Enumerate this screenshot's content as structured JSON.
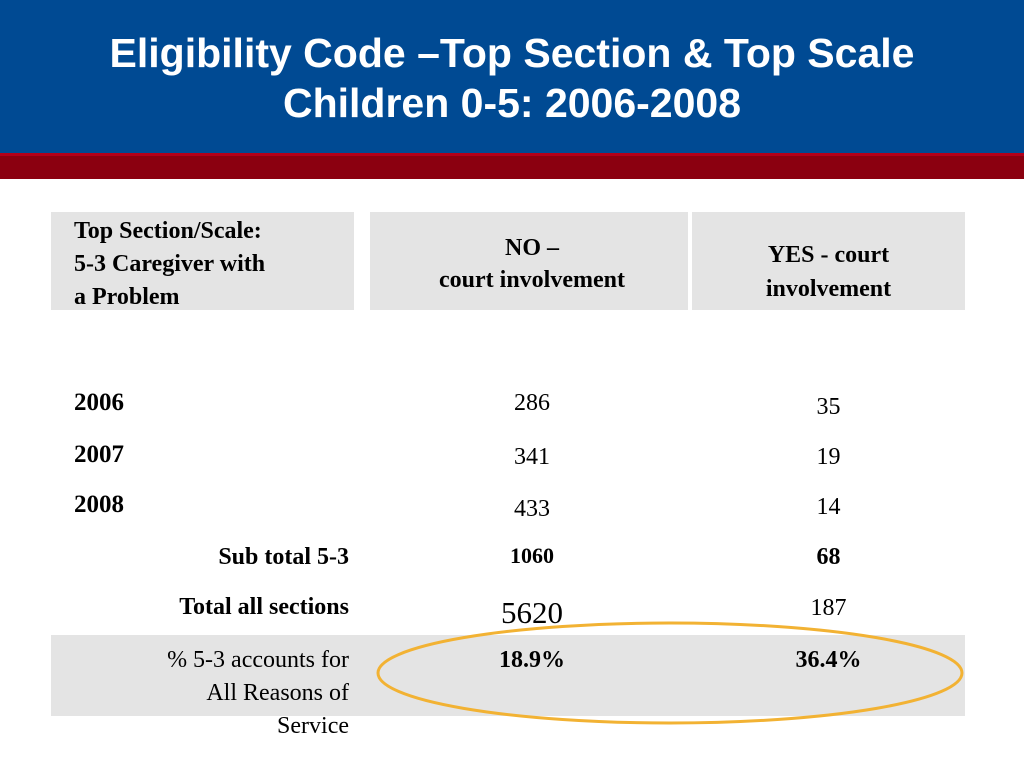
{
  "slide": {
    "title_line1": "Eligibility Code –Top Section & Top Scale",
    "title_line2": "Children 0-5: 2006-2008"
  },
  "table": {
    "header": {
      "label_lines": [
        "Top Section/Scale:",
        "5-3 Caregiver with",
        "a Problem"
      ],
      "no_lines": [
        "NO –",
        "court involvement"
      ],
      "yes_lines": [
        "YES - court",
        "involvement"
      ]
    },
    "rows": [
      {
        "label": "2006",
        "no": "286",
        "yes": "35"
      },
      {
        "label": "2007",
        "no": "341",
        "yes": "19"
      },
      {
        "label": "2008",
        "no": "433",
        "yes": "14"
      }
    ],
    "subtotal": {
      "label": "Sub total 5-3",
      "no": "1060",
      "yes": "68"
    },
    "total": {
      "label": "Total all sections",
      "no": "5620",
      "yes": "187"
    },
    "percent": {
      "label_lines": [
        "% 5-3 accounts for",
        "All Reasons of",
        "Service"
      ],
      "no": "18.9%",
      "yes": "36.4%"
    }
  },
  "colors": {
    "title_bar": "#004a93",
    "red_band": "#8b0010",
    "row_shade": "#e4e4e4",
    "highlight_ellipse": "#f2b233"
  }
}
